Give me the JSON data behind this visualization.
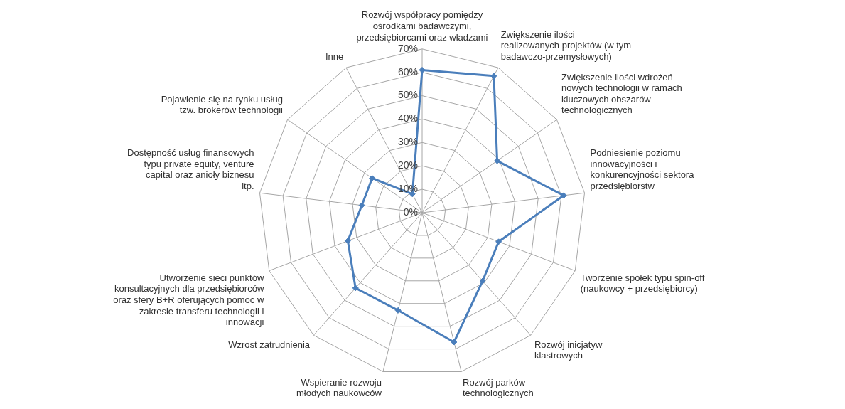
{
  "chart_data": {
    "type": "radar",
    "categories": [
      "Rozwój współpracy pomiędzy ośrodkami badawczymi, przedsiębiorcami oraz władzami",
      "Zwiększenie ilości realizowanych projektów (w tym badawczo-przemysłowych)",
      "Zwiększenie ilości wdrożeń nowych technologii w ramach kluczowych obszarów technologicznych",
      "Podniesienie poziomu innowacyjności i konkurencyjności sektora przedsiębiorstw",
      "Tworzenie spółek typu spin-off (naukowcy + przedsiębiorcy)",
      "Rozwój inicjatyw klastrowych",
      "Rozwój parków technologicznych",
      "Wspieranie rozwoju młodych naukowców",
      "Wzrost zatrudnienia",
      "Utworzenie sieci punktów konsultacyjnych dla przedsiębiorców oraz sfery B+R oferujących pomoc w zakresie transferu technologii i innowacji",
      "Dostępność usług finansowych typu private equity, venture capital oraz anioły biznesu itp.",
      "Pojawienie się na rynku usług tzw. brokerów technologii",
      "Inne"
    ],
    "series": [
      {
        "color": "#4a7ebb",
        "values": [
          61,
          66,
          39,
          61,
          35,
          39,
          57,
          43,
          43,
          34,
          26,
          26,
          9
        ]
      }
    ],
    "ylim": [
      0,
      70
    ],
    "yticks": [
      {
        "value": 0,
        "label": "0%"
      },
      {
        "value": 10,
        "label": "10%"
      },
      {
        "value": 20,
        "label": "20%"
      },
      {
        "value": 30,
        "label": "30%"
      },
      {
        "value": 40,
        "label": "40%"
      },
      {
        "value": 50,
        "label": "50%"
      },
      {
        "value": 60,
        "label": "60%"
      },
      {
        "value": 70,
        "label": "70%"
      }
    ],
    "grid": true,
    "legend": false,
    "marker": "diamond",
    "line_style": "solid"
  }
}
